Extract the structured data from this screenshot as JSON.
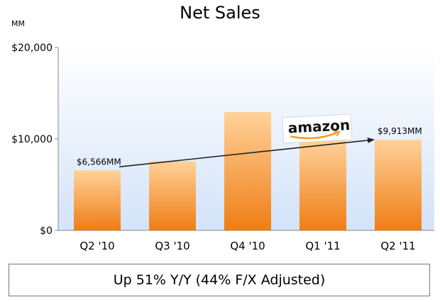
{
  "chart_data": {
    "type": "bar",
    "title": "Net Sales",
    "unit_label": "MM",
    "categories": [
      "Q2 '10",
      "Q3 '10",
      "Q4 '10",
      "Q1 '11",
      "Q2 '11"
    ],
    "values": [
      6566,
      7560,
      12948,
      9857,
      9913
    ],
    "ylim": [
      0,
      20000
    ],
    "yticks": [
      {
        "value": 0,
        "label": "$0"
      },
      {
        "value": 10000,
        "label": "$10,000"
      },
      {
        "value": 20000,
        "label": "$20,000"
      }
    ],
    "data_labels": [
      {
        "index": 0,
        "text": "$6,566MM"
      },
      {
        "index": 4,
        "text": "$9,913MM"
      }
    ],
    "annotation": {
      "logo_text": "amazon",
      "arrow_from_index": 0,
      "arrow_to_index": 4
    },
    "grid": false,
    "colors": {
      "bar_top": "#ffd29a",
      "bar_bottom": "#ef7d14",
      "plot_bg_top": "#ffffff",
      "plot_bg_bottom": "#d3e3f9"
    }
  },
  "footer": {
    "text": "Up 51% Y/Y (44% F/X Adjusted)"
  }
}
